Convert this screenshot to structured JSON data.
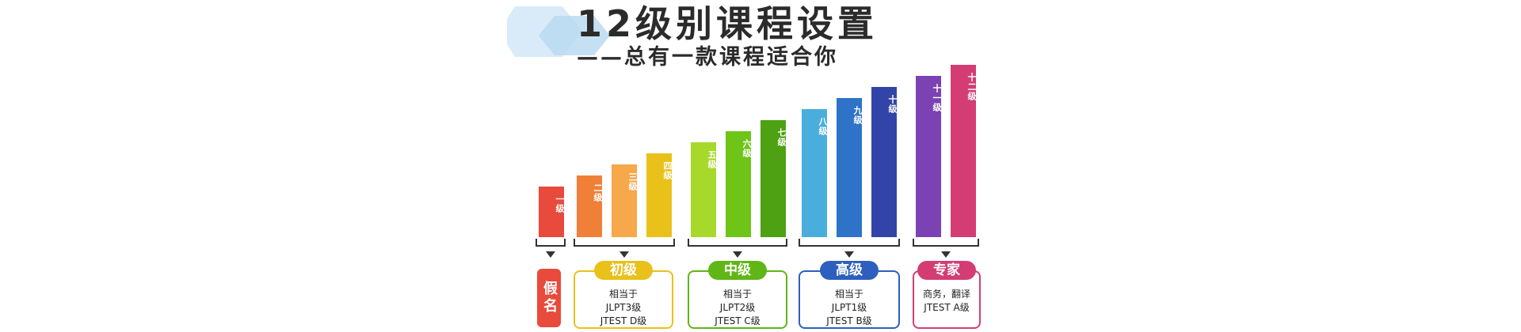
{
  "header": {
    "title": "12级别课程设置",
    "subtitle": "——总有一款课程适合你"
  },
  "chart_data": {
    "type": "bar",
    "categories": [
      "一级",
      "二级",
      "三级",
      "四级",
      "五级",
      "六级",
      "七级",
      "八级",
      "九级",
      "十级",
      "十一级",
      "十二级"
    ],
    "values": [
      1,
      2,
      3,
      4,
      5,
      6,
      7,
      8,
      9,
      10,
      11,
      12
    ],
    "colors": [
      "#e84a3c",
      "#f07f38",
      "#f6a84b",
      "#e9c11a",
      "#a7d82c",
      "#6fc418",
      "#4ea112",
      "#4aaedd",
      "#2e73c8",
      "#3344a8",
      "#7a42b2",
      "#d33d74"
    ]
  },
  "trial": {
    "label": "假名"
  },
  "groups": [
    {
      "title": "初级",
      "lines": [
        "相当于",
        "JLPT3级",
        "JTEST D级"
      ],
      "color": "#e9c11a"
    },
    {
      "title": "中级",
      "lines": [
        "相当于",
        "JLPT2级",
        "JTEST C级"
      ],
      "color": "#5fb616"
    },
    {
      "title": "高级",
      "lines": [
        "相当于",
        "JLPT1级",
        "JTEST B级"
      ],
      "color": "#2e5fbf"
    },
    {
      "title": "专家",
      "lines": [
        "商务，翻译",
        "JTEST A级"
      ],
      "color": "#d33d74"
    }
  ]
}
